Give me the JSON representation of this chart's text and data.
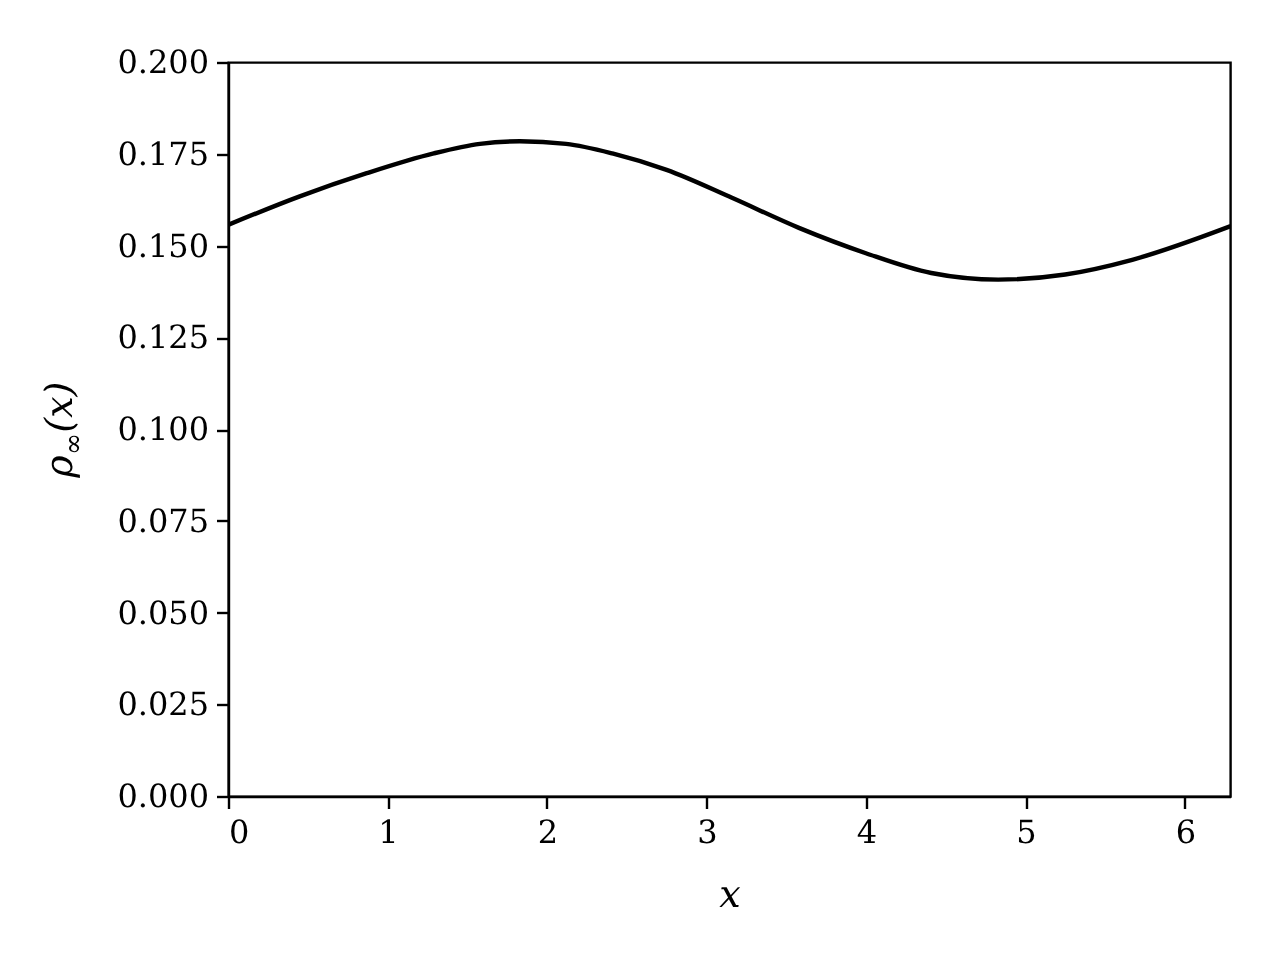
{
  "chart_data": {
    "type": "line",
    "xlabel": "x",
    "ylabel": "ρ$_{∞}$(x)",
    "x": [
      0,
      0.45,
      0.87,
      1.29,
      1.58,
      1.83,
      2.12,
      2.41,
      2.75,
      3.16,
      3.58,
      4.0,
      4.41,
      4.83,
      5.25,
      5.67,
      6.283
    ],
    "series": [
      {
        "color": "#000000",
        "values": [
          0.1556,
          0.1634,
          0.1697,
          0.1751,
          0.1777,
          0.1784,
          0.1777,
          0.1751,
          0.1706,
          0.163,
          0.1548,
          0.1479,
          0.1425,
          0.1407,
          0.1421,
          0.1461,
          0.1552
        ]
      }
    ],
    "xlim": [
      0,
      6.283
    ],
    "ylim": [
      0,
      0.2
    ],
    "xticks": [
      0,
      1,
      2,
      3,
      4,
      5,
      6
    ],
    "yticks": [
      {
        "value": 0,
        "label": "0.000"
      },
      {
        "value": 0.025,
        "label": "0.025"
      },
      {
        "value": 0.05,
        "label": "0.050"
      },
      {
        "value": 0.075,
        "label": "0.075"
      },
      {
        "value": 0.1,
        "label": "0.100"
      },
      {
        "value": 0.125,
        "label": "0.125"
      },
      {
        "value": 0.15,
        "label": "0.150"
      },
      {
        "value": 0.175,
        "label": "0.175"
      },
      {
        "value": 0.2,
        "label": "0.200"
      }
    ],
    "grid": false
  }
}
